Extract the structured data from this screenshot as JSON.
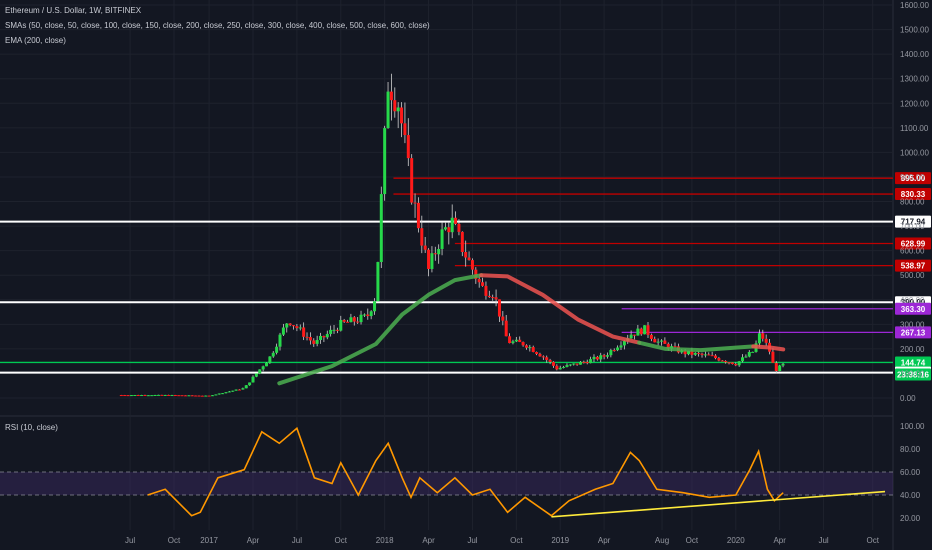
{
  "legend": {
    "symbol": "Ethereum / U.S. Dollar, 1W, BITFINEX",
    "smas": "SMAs (50, close, 50, close, 100, close, 150, close, 200, close, 250, close, 300, close, 400, close, 500, close, 600, close)",
    "ema": "EMA (200, close)",
    "rsi": "RSI (10, close)"
  },
  "chart_data": [
    {
      "type": "candlestick",
      "title": "Ethereum / U.S. Dollar, 1W, BITFINEX",
      "ylim": [
        0,
        1600
      ],
      "y_ticks": [
        "1600.00",
        "1500.00",
        "1400.00",
        "1300.00",
        "1200.00",
        "1100.00",
        "1000.00",
        "900.00",
        "800.00",
        "700.00",
        "600.00",
        "500.00",
        "400.00",
        "300.00",
        "200.00",
        "100.00",
        "0.00"
      ],
      "x_ticks": [
        "Jul",
        "Oct",
        "2017",
        "Apr",
        "Jul",
        "Oct",
        "2018",
        "Apr",
        "Jul",
        "Oct",
        "2019",
        "Apr",
        "Aug",
        "Oct",
        "2020",
        "Apr",
        "Jul",
        "Oct"
      ],
      "price_path": [
        [
          2016.5,
          12
        ],
        [
          2016.75,
          12
        ],
        [
          2017.0,
          9
        ],
        [
          2017.2,
          40
        ],
        [
          2017.35,
          170
        ],
        [
          2017.45,
          320
        ],
        [
          2017.6,
          220
        ],
        [
          2017.75,
          300
        ],
        [
          2017.9,
          330
        ],
        [
          2017.95,
          420
        ],
        [
          2018.02,
          1300
        ],
        [
          2018.08,
          1200
        ],
        [
          2018.15,
          850
        ],
        [
          2018.25,
          520
        ],
        [
          2018.32,
          660
        ],
        [
          2018.38,
          720
        ],
        [
          2018.45,
          600
        ],
        [
          2018.55,
          450
        ],
        [
          2018.62,
          430
        ],
        [
          2018.7,
          230
        ],
        [
          2018.8,
          220
        ],
        [
          2018.9,
          170
        ],
        [
          2018.98,
          120
        ],
        [
          2019.1,
          140
        ],
        [
          2019.25,
          170
        ],
        [
          2019.4,
          260
        ],
        [
          2019.48,
          280
        ],
        [
          2019.55,
          230
        ],
        [
          2019.7,
          185
        ],
        [
          2019.85,
          170
        ],
        [
          2020.0,
          140
        ],
        [
          2020.1,
          190
        ],
        [
          2020.14,
          265
        ],
        [
          2020.2,
          180
        ],
        [
          2020.22,
          110
        ],
        [
          2020.27,
          135
        ]
      ],
      "sma_green": [
        [
          2017.4,
          60
        ],
        [
          2017.7,
          130
        ],
        [
          2017.95,
          220
        ],
        [
          2018.1,
          340
        ],
        [
          2018.25,
          420
        ],
        [
          2018.4,
          480
        ],
        [
          2018.55,
          500
        ]
      ],
      "sma_red": [
        [
          2018.55,
          500
        ],
        [
          2018.7,
          495
        ],
        [
          2018.9,
          420
        ],
        [
          2019.1,
          320
        ],
        [
          2019.3,
          250
        ],
        [
          2019.45,
          225
        ]
      ],
      "sma_green_2": [
        [
          2019.45,
          225
        ],
        [
          2019.6,
          200
        ],
        [
          2019.8,
          195
        ],
        [
          2020.0,
          205
        ],
        [
          2020.1,
          210
        ]
      ],
      "sma_red_2": [
        [
          2020.1,
          210
        ],
        [
          2020.2,
          205
        ],
        [
          2020.27,
          198
        ]
      ],
      "price_levels": [
        {
          "value": 895,
          "label": "895.00",
          "color": "#c00000"
        },
        {
          "value": 830.33,
          "label": "830.33",
          "color": "#c00000"
        },
        {
          "value": 717.94,
          "label": "717.94",
          "color": "#ffffff"
        },
        {
          "value": 628.99,
          "label": "628.99",
          "color": "#c00000"
        },
        {
          "value": 538.97,
          "label": "538.97",
          "color": "#c00000"
        },
        {
          "value": 390,
          "label": "390.00",
          "color": "#ffffff"
        },
        {
          "value": 363.3,
          "label": "363.30",
          "color": "#9c27d6"
        },
        {
          "value": 267.13,
          "label": "267.13",
          "color": "#9c27d6"
        },
        {
          "value": 144.74,
          "label": "144.74",
          "color": "#00c853"
        },
        {
          "value": 103.2,
          "label": "103.20",
          "color": "#ffffff"
        }
      ],
      "countdown_tag": "23:38:16"
    },
    {
      "type": "line",
      "title": "RSI (10, close)",
      "ylim": [
        10,
        105
      ],
      "y_ticks": [
        "100.00",
        "80.00",
        "60.00",
        "40.00",
        "20.00"
      ],
      "band": [
        40,
        60
      ],
      "values": [
        [
          2016.65,
          40
        ],
        [
          2016.75,
          45
        ],
        [
          2016.9,
          22
        ],
        [
          2016.95,
          25
        ],
        [
          2017.05,
          55
        ],
        [
          2017.2,
          62
        ],
        [
          2017.3,
          95
        ],
        [
          2017.4,
          85
        ],
        [
          2017.5,
          98
        ],
        [
          2017.6,
          55
        ],
        [
          2017.7,
          50
        ],
        [
          2017.75,
          68
        ],
        [
          2017.85,
          40
        ],
        [
          2017.95,
          70
        ],
        [
          2018.02,
          85
        ],
        [
          2018.1,
          55
        ],
        [
          2018.15,
          38
        ],
        [
          2018.2,
          55
        ],
        [
          2018.3,
          42
        ],
        [
          2018.4,
          55
        ],
        [
          2018.5,
          40
        ],
        [
          2018.6,
          45
        ],
        [
          2018.7,
          25
        ],
        [
          2018.8,
          38
        ],
        [
          2018.95,
          22
        ],
        [
          2019.05,
          35
        ],
        [
          2019.2,
          45
        ],
        [
          2019.3,
          50
        ],
        [
          2019.4,
          77
        ],
        [
          2019.45,
          70
        ],
        [
          2019.55,
          45
        ],
        [
          2019.7,
          42
        ],
        [
          2019.85,
          38
        ],
        [
          2020.0,
          40
        ],
        [
          2020.08,
          62
        ],
        [
          2020.13,
          78
        ],
        [
          2020.18,
          45
        ],
        [
          2020.22,
          35
        ],
        [
          2020.27,
          42
        ]
      ],
      "trendline": [
        [
          2018.95,
          21
        ],
        [
          2020.85,
          43
        ]
      ]
    }
  ]
}
